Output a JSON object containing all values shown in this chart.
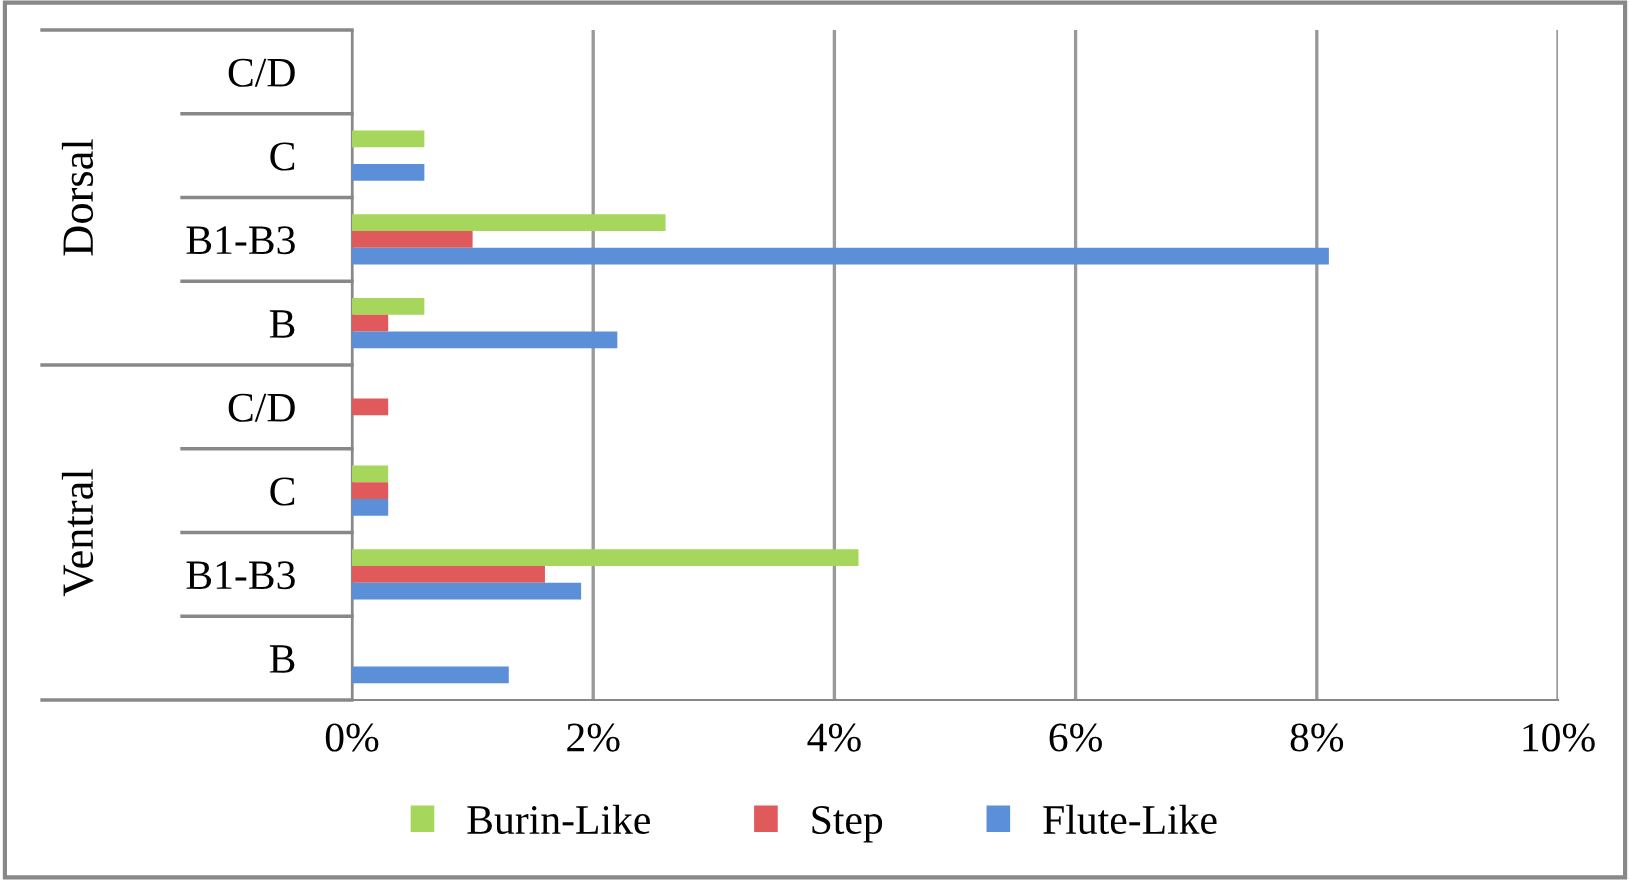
{
  "chart_data": {
    "type": "bar",
    "orientation": "horizontal",
    "categories": [
      "C/D",
      "C",
      "B1-B3",
      "B",
      "C/D",
      "C",
      "B1-B3",
      "B"
    ],
    "annotations": [
      "Dorsal",
      "Ventral"
    ],
    "series": [
      {
        "name": "Burin-Like",
        "color": "#a6d65c",
        "values": [
          null,
          0.6,
          2.6,
          0.6,
          null,
          0.3,
          4.2,
          null
        ]
      },
      {
        "name": "Step",
        "color": "#e05a5c",
        "values": [
          null,
          null,
          1.0,
          0.3,
          0.3,
          0.3,
          1.6,
          null
        ]
      },
      {
        "name": "Flute-Like",
        "color": "#5b8fd8",
        "values": [
          null,
          0.6,
          8.1,
          2.2,
          null,
          0.3,
          1.9,
          1.3
        ]
      }
    ],
    "xlim": [
      0,
      10
    ],
    "xticks": [
      {
        "value": 0,
        "label": "0%"
      },
      {
        "value": 2,
        "label": "2%"
      },
      {
        "value": 4,
        "label": "4%"
      },
      {
        "value": 6,
        "label": "6%"
      },
      {
        "value": 8,
        "label": "8%"
      },
      {
        "value": 10,
        "label": "10%"
      }
    ],
    "grid": "x",
    "legend": "bottom"
  }
}
